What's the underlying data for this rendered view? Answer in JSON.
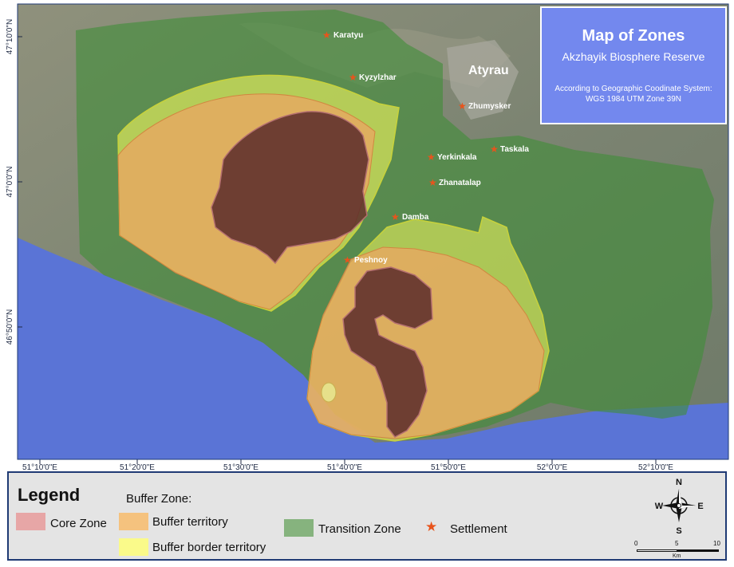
{
  "title": {
    "main": "Map of Zones",
    "subtitle": "Akzhayik Biosphere Reserve",
    "crs_line1": "According to Geographic Coodinate System:",
    "crs_line2": "WGS 1984 UTM Zone 39N"
  },
  "city_label": "Atyrau",
  "settlements": [
    {
      "name": "Karatyu"
    },
    {
      "name": "Kyzylzhar"
    },
    {
      "name": "Zhumysker"
    },
    {
      "name": "Taskala"
    },
    {
      "name": "Yerkinkala"
    },
    {
      "name": "Zhanatalap"
    },
    {
      "name": "Damba"
    },
    {
      "name": "Peshnoy"
    }
  ],
  "lat_ticks": [
    "47°10'0\"N",
    "47°0'0\"N",
    "46°50'0\"N"
  ],
  "lon_ticks": [
    "51°10'0\"E",
    "51°20'0\"E",
    "51°30'0\"E",
    "51°40'0\"E",
    "51°50'0\"E",
    "52°0'0\"E",
    "52°10'0\"E"
  ],
  "legend": {
    "title": "Legend",
    "buffer_heading": "Buffer Zone:",
    "core": "Core Zone",
    "buffer": "Buffer territory",
    "buffer_border": "Buffer border territory",
    "transition": "Transition Zone",
    "settlement": "Settlement"
  },
  "compass": {
    "n": "N",
    "s": "S",
    "e": "E",
    "w": "W"
  },
  "scalebar": {
    "labels": [
      "0",
      "5",
      "10"
    ],
    "unit": "Km"
  },
  "colors": {
    "core": "#e7a6a6",
    "buffer": "#f5c27e",
    "buffer_border": "#fafa8a",
    "transition": "#86b37e",
    "settlement": "#e8541c",
    "sea": "#5a74d6",
    "title_bg": "#7388ee",
    "legend_border": "#1f3a74"
  }
}
